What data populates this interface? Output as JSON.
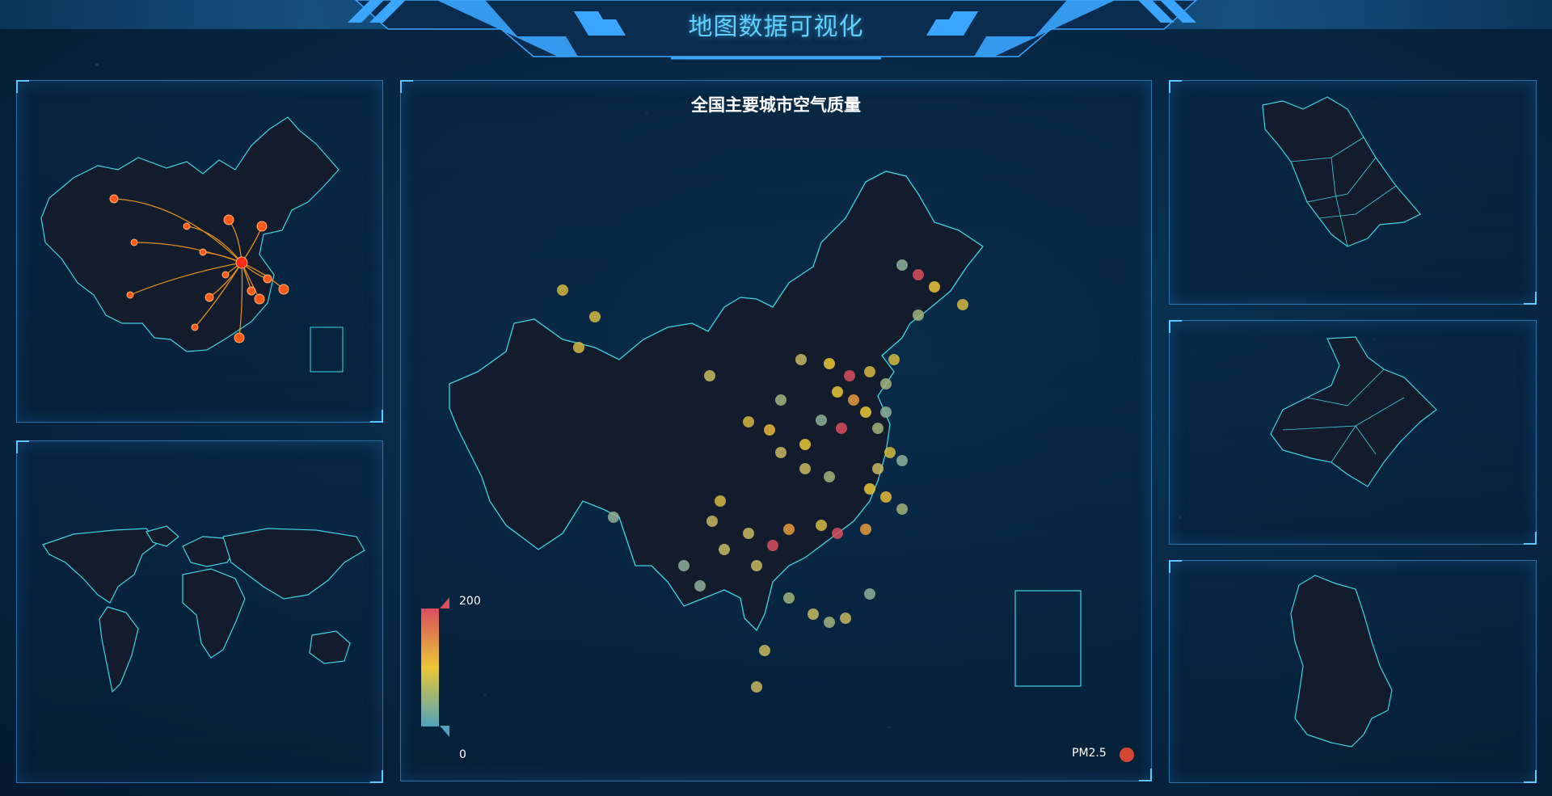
{
  "header": {
    "title": "地图数据可视化"
  },
  "main_map": {
    "title": "全国主要城市空气质量",
    "visual_map": {
      "max_label": "200",
      "min_label": "0",
      "colors": [
        "#d94e5d",
        "#eac736",
        "#50a3ba"
      ]
    },
    "legend": {
      "series_label": "PM2.5",
      "series_color": "#d64836"
    }
  },
  "theme": {
    "accent": "#4fb1ff",
    "map_fill": "#131c2d",
    "map_stroke": "#3fd4e0",
    "flow_color": "#f59a1a"
  },
  "chart_data": {
    "type": "scatter",
    "title": "全国主要城市空气质量",
    "series": [
      {
        "name": "PM2.5",
        "color_scale": [
          0,
          200
        ]
      }
    ]
  }
}
